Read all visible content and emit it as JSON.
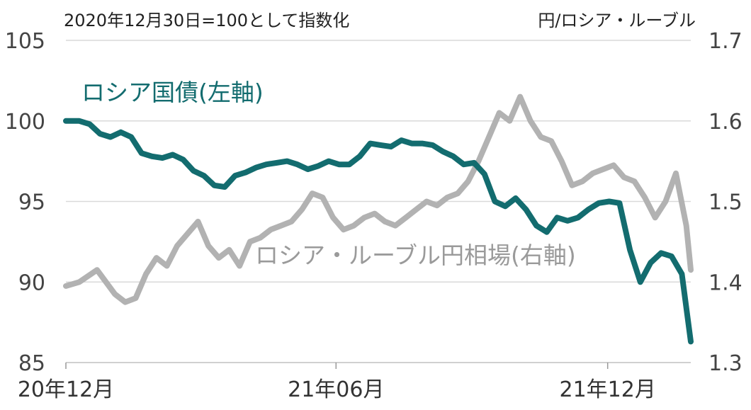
{
  "chart_data": {
    "type": "line",
    "note_left": "2020年12月30日=100として指数化",
    "note_right": "円/ロシア・ルーブル",
    "x_ticks": [
      "20年12月",
      "21年06月",
      "21年12月"
    ],
    "x_range": [
      "2020-12-30",
      "2022-02-24"
    ],
    "y_left": {
      "ticks": [
        "105",
        "100",
        "95",
        "90",
        "85"
      ],
      "ylim": [
        85,
        105
      ]
    },
    "y_right": {
      "ticks": [
        "1.7",
        "1.6",
        "1.5",
        "1.4",
        "1.3"
      ],
      "ylim": [
        1.3,
        1.7
      ]
    },
    "grid": true,
    "series": [
      {
        "name": "ロシア・ルーブル円相場(右軸)",
        "axis": "right",
        "color": "#b2b2b2",
        "x": [
          "2020-12-30",
          "2021-01-08",
          "2021-01-20",
          "2021-02-01",
          "2021-02-08",
          "2021-02-15",
          "2021-02-22",
          "2021-03-01",
          "2021-03-08",
          "2021-03-15",
          "2021-03-22",
          "2021-03-29",
          "2021-04-05",
          "2021-04-12",
          "2021-04-19",
          "2021-04-26",
          "2021-05-03",
          "2021-05-10",
          "2021-05-17",
          "2021-05-24",
          "2021-05-31",
          "2021-06-07",
          "2021-06-14",
          "2021-06-21",
          "2021-06-28",
          "2021-07-05",
          "2021-07-12",
          "2021-07-19",
          "2021-07-26",
          "2021-08-02",
          "2021-08-09",
          "2021-08-16",
          "2021-08-23",
          "2021-08-30",
          "2021-09-06",
          "2021-09-13",
          "2021-09-20",
          "2021-09-27",
          "2021-10-04",
          "2021-10-11",
          "2021-10-18",
          "2021-10-25",
          "2021-11-01",
          "2021-11-08",
          "2021-11-15",
          "2021-11-22",
          "2021-11-29",
          "2021-12-06",
          "2021-12-13",
          "2021-12-20",
          "2021-12-27",
          "2022-01-03",
          "2022-01-10",
          "2022-01-17",
          "2022-01-24",
          "2022-01-31",
          "2022-02-07",
          "2022-02-14",
          "2022-02-21",
          "2022-02-24"
        ],
        "values": [
          1.395,
          1.4,
          1.415,
          1.385,
          1.375,
          1.38,
          1.41,
          1.43,
          1.42,
          1.445,
          1.46,
          1.475,
          1.445,
          1.43,
          1.44,
          1.42,
          1.45,
          1.455,
          1.465,
          1.47,
          1.475,
          1.49,
          1.51,
          1.505,
          1.48,
          1.465,
          1.47,
          1.48,
          1.485,
          1.475,
          1.47,
          1.48,
          1.49,
          1.5,
          1.495,
          1.505,
          1.51,
          1.525,
          1.55,
          1.58,
          1.61,
          1.6,
          1.63,
          1.6,
          1.58,
          1.575,
          1.55,
          1.52,
          1.525,
          1.535,
          1.54,
          1.545,
          1.53,
          1.525,
          1.505,
          1.48,
          1.5,
          1.535,
          1.47,
          1.415
        ]
      },
      {
        "name": "ロシア国債(左軸)",
        "axis": "left",
        "color": "#136c6f",
        "x": [
          "2020-12-30",
          "2021-01-08",
          "2021-01-15",
          "2021-01-22",
          "2021-01-29",
          "2021-02-05",
          "2021-02-12",
          "2021-02-19",
          "2021-02-26",
          "2021-03-05",
          "2021-03-12",
          "2021-03-19",
          "2021-03-26",
          "2021-04-02",
          "2021-04-09",
          "2021-04-16",
          "2021-04-23",
          "2021-04-30",
          "2021-05-07",
          "2021-05-14",
          "2021-05-21",
          "2021-05-28",
          "2021-06-04",
          "2021-06-11",
          "2021-06-18",
          "2021-06-25",
          "2021-07-02",
          "2021-07-09",
          "2021-07-16",
          "2021-07-23",
          "2021-07-30",
          "2021-08-06",
          "2021-08-13",
          "2021-08-20",
          "2021-08-27",
          "2021-09-03",
          "2021-09-10",
          "2021-09-17",
          "2021-09-24",
          "2021-10-01",
          "2021-10-08",
          "2021-10-15",
          "2021-10-22",
          "2021-10-29",
          "2021-11-05",
          "2021-11-12",
          "2021-11-19",
          "2021-11-26",
          "2021-12-03",
          "2021-12-10",
          "2021-12-17",
          "2021-12-24",
          "2021-12-31",
          "2022-01-07",
          "2022-01-14",
          "2022-01-21",
          "2022-01-28",
          "2022-02-04",
          "2022-02-11",
          "2022-02-18",
          "2022-02-24"
        ],
        "values": [
          100.0,
          100.0,
          99.8,
          99.2,
          99.0,
          99.3,
          99.0,
          98.0,
          97.8,
          97.7,
          97.9,
          97.6,
          96.9,
          96.6,
          96.0,
          95.9,
          96.6,
          96.8,
          97.1,
          97.3,
          97.4,
          97.5,
          97.3,
          97.0,
          97.2,
          97.5,
          97.3,
          97.3,
          97.8,
          98.6,
          98.5,
          98.4,
          98.8,
          98.6,
          98.6,
          98.5,
          98.1,
          97.8,
          97.3,
          97.4,
          96.7,
          95.0,
          94.7,
          95.2,
          94.5,
          93.5,
          93.1,
          94.0,
          93.8,
          94.0,
          94.5,
          94.9,
          95.0,
          94.9,
          92.0,
          90.0,
          91.2,
          91.8,
          91.6,
          90.5,
          86.3
        ]
      }
    ]
  }
}
